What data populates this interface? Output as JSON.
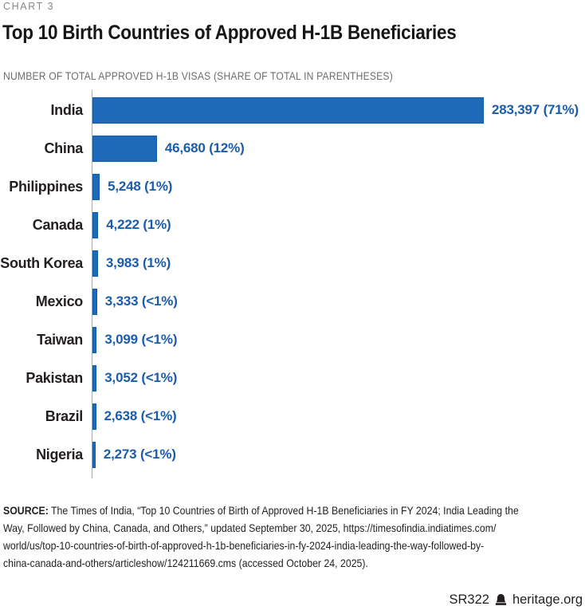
{
  "page": {
    "kicker": "CHART 3",
    "title": "Top 10 Birth Countries of Approved H-1B Beneficiaries",
    "subtitle": "NUMBER OF TOTAL APPROVED H-1B VISAS (SHARE OF TOTAL IN PARENTHESES)"
  },
  "chart_data": {
    "type": "bar",
    "orientation": "horizontal",
    "title": "Top 10 Birth Countries of Approved H-1B Beneficiaries",
    "axis_note": "NUMBER OF TOTAL APPROVED H-1B VISAS (SHARE OF TOTAL IN PARENTHESES)",
    "categories": [
      "India",
      "China",
      "Philippines",
      "Canada",
      "South Korea",
      "Mexico",
      "Taiwan",
      "Pakistan",
      "Brazil",
      "Nigeria"
    ],
    "values": [
      283397,
      46680,
      5248,
      4222,
      3983,
      3333,
      3099,
      3052,
      2638,
      2273
    ],
    "value_labels": [
      "283,397 (71%)",
      "46,680 (12%)",
      "5,248 (1%)",
      "4,222 (1%)",
      "3,983 (1%)",
      "3,333 (<1%)",
      "3,099 (<1%)",
      "3,052 (<1%)",
      "2,638 (<1%)",
      "2,273 (<1%)"
    ],
    "shares": [
      "71%",
      "12%",
      "1%",
      "1%",
      "1%",
      "<1%",
      "<1%",
      "<1%",
      "<1%",
      "<1%"
    ],
    "xlim": [
      0,
      283397
    ],
    "grid": false,
    "legend": false,
    "bar_color": "#1e6ab8",
    "value_label_color": "#1b5cab",
    "axis_line_color": "#a9abad"
  },
  "source": {
    "label": "SOURCE:",
    "lines": [
      "The Times of India, “Top 10 Countries of Birth of Approved H-1B Beneficiaries in FY 2024; India Leading the",
      "Way, Followed by China, Canada, and Others,” updated September 30, 2025, https://timesofindia.indiatimes.com/",
      "world/us/top-10-countries-of-birth-of-approved-h-1b-beneficiaries-in-fy-2024-india-leading-the-way-followed-by-",
      "china-canada-and-others/articleshow/124211669.cms (accessed October 24, 2025)."
    ]
  },
  "footer": {
    "report_id": "SR322",
    "site": "heritage.org",
    "logo_icon": "heritage-bell-icon"
  }
}
